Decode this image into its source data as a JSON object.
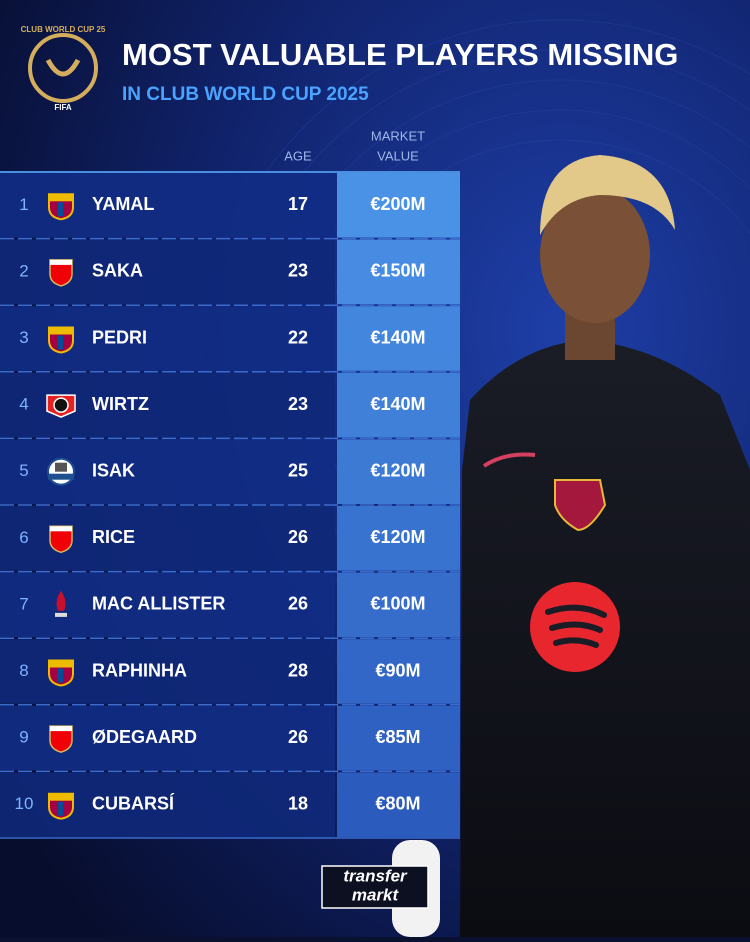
{
  "header": {
    "logo_text": "CLUB WORLD CUP 25",
    "logo_sub": "FIFA",
    "title": "MOST VALUABLE PLAYERS MISSING",
    "subtitle": "IN CLUB WORLD CUP 2025"
  },
  "table": {
    "columns": {
      "age": "AGE",
      "market_value": [
        "MARKET",
        "VALUE"
      ]
    },
    "rows": [
      {
        "rank": 1,
        "name": "YAMAL",
        "age": 17,
        "value": "€200M"
      },
      {
        "rank": 2,
        "name": "SAKA",
        "age": 23,
        "value": "€150M"
      },
      {
        "rank": 3,
        "name": "PEDRI",
        "age": 22,
        "value": "€140M"
      },
      {
        "rank": 4,
        "name": "WIRTZ",
        "age": 23,
        "value": "€140M"
      },
      {
        "rank": 5,
        "name": "ISAK",
        "age": 25,
        "value": "€120M"
      },
      {
        "rank": 6,
        "name": "RICE",
        "age": 26,
        "value": "€120M"
      },
      {
        "rank": 7,
        "name": "MAC ALLISTER",
        "age": 26,
        "value": "€100M"
      },
      {
        "rank": 8,
        "name": "RAPHINHA",
        "age": 28,
        "value": "€90M"
      },
      {
        "rank": 9,
        "name": "ØDEGAARD",
        "age": 26,
        "value": "€85M"
      },
      {
        "rank": 10,
        "name": "CUBARSÍ",
        "age": 18,
        "value": "€80M"
      }
    ]
  },
  "footer": {
    "brand_top": "transfer",
    "brand_bottom": "markt"
  }
}
